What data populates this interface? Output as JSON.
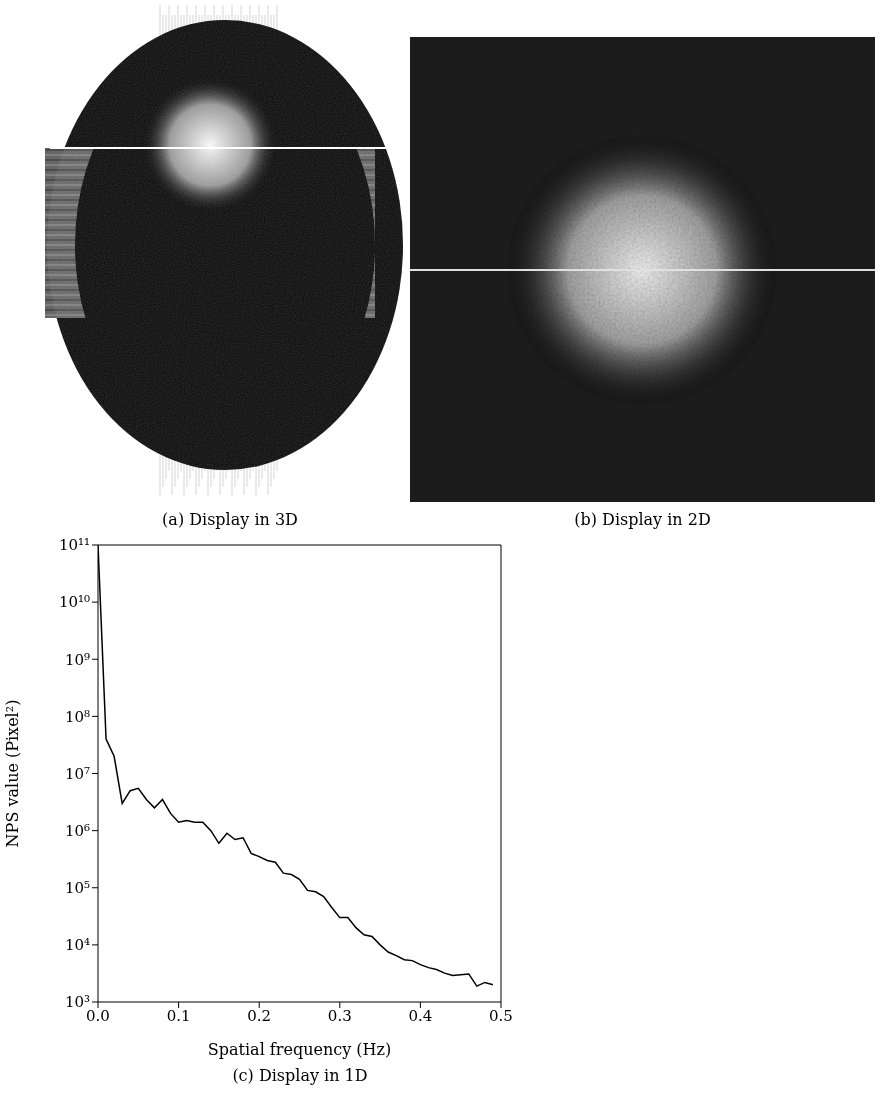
{
  "chart_data": {
    "type": "line",
    "title": "(c) Display in 1D",
    "x_label": "Spatial frequency (Hz)",
    "y_label": "NPS value (Pixel²)",
    "log": "y",
    "grid": false,
    "xlim": [
      0,
      0.5
    ],
    "xticks": [
      {
        "value": 0,
        "label": "0.0"
      },
      0.1,
      0.2,
      0.3,
      0.4,
      0.5
    ],
    "ylim": [
      1000,
      100000000000
    ],
    "yticks": [
      {
        "value": 1000,
        "label": "10³"
      },
      {
        "value": 10000,
        "label": "10⁴"
      },
      {
        "value": 100000,
        "label": "10⁵"
      },
      {
        "value": 1000000,
        "label": "10⁶"
      },
      {
        "value": 10000000,
        "label": "10⁷"
      },
      {
        "value": 100000000,
        "label": "10⁸"
      },
      {
        "value": 1000000000,
        "label": "10⁹"
      },
      {
        "value": 10000000000,
        "label": "10¹⁰"
      },
      {
        "value": 100000000000,
        "label": "10¹¹"
      }
    ],
    "x": [
      0,
      0.01,
      0.02,
      0.03,
      0.04,
      0.05,
      0.06,
      0.07,
      0.08,
      0.09,
      0.1,
      0.11,
      0.12,
      0.13,
      0.14,
      0.15,
      0.16,
      0.17,
      0.18,
      0.19,
      0.2,
      0.21,
      0.22,
      0.23,
      0.24,
      0.25,
      0.26,
      0.27,
      0.28,
      0.29,
      0.3,
      0.31,
      0.32,
      0.33,
      0.34,
      0.35,
      0.36,
      0.37,
      0.38,
      0.39,
      0.4,
      0.41,
      0.42,
      0.43,
      0.44,
      0.45,
      0.46,
      0.47,
      0.48,
      0.49
    ],
    "values": [
      100000000000,
      40000000,
      20000000,
      3000000,
      5000000,
      5500000,
      3500000,
      2500000,
      3500000,
      2000000,
      1400000,
      1500000,
      1400000,
      1400000,
      1000000,
      600000,
      900000,
      700000,
      750000,
      400000,
      350000,
      300000,
      280000,
      180000,
      170000,
      140000,
      90000,
      85000,
      70000,
      45000,
      30000,
      30000,
      20000,
      15000,
      14000,
      10000,
      7500,
      6500,
      5500,
      5300,
      4500,
      4000,
      3700,
      3200,
      2900,
      3000,
      3100,
      1900,
      2200,
      2000
    ],
    "color": "#000000"
  },
  "images": [
    {
      "caption": "(a) Display in 3D"
    },
    {
      "caption": "(b) Display in 2D"
    }
  ]
}
